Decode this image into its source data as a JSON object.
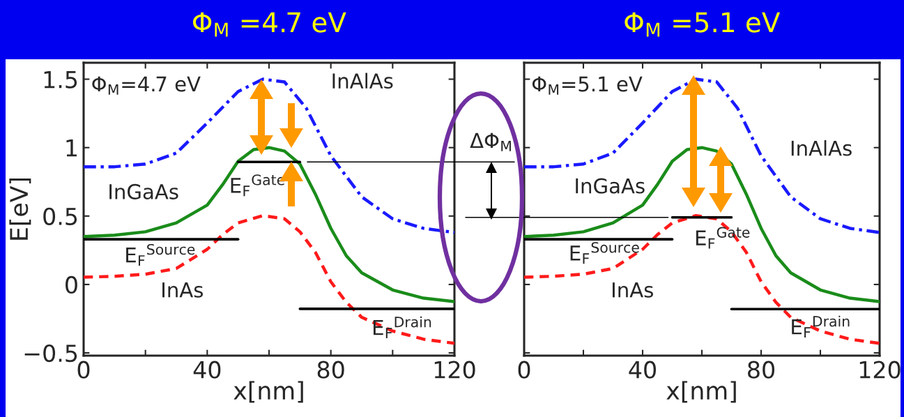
{
  "chart_data": [
    {
      "type": "line",
      "title": "Φ$_{M}$ =4.7 eV",
      "xlabel": "x[nm]",
      "ylabel": "E[eV]",
      "xlim": [
        0,
        120
      ],
      "ylim": [
        -0.52,
        1.62
      ],
      "xticks": [
        0,
        {
          "value": 20,
          "label": null
        },
        40,
        {
          "value": 60,
          "label": null
        },
        80,
        {
          "value": 100,
          "label": null
        },
        120
      ],
      "yticks": [
        {
          "value": -0.5,
          "label": "−0.5"
        },
        0,
        0.5,
        1,
        1.5
      ],
      "grid": false,
      "legend": false,
      "series": [
        {
          "name": "InAlAs",
          "color": "#1a1aff",
          "line_style": "dashdot",
          "x": [
            0,
            10,
            20,
            30,
            40,
            50,
            58,
            65,
            72,
            80,
            90,
            100,
            110,
            120
          ],
          "values": [
            0.86,
            0.86,
            0.88,
            0.96,
            1.18,
            1.41,
            1.5,
            1.48,
            1.29,
            0.94,
            0.64,
            0.48,
            0.41,
            0.38
          ]
        },
        {
          "name": "InGaAs",
          "color": "#1a8c1a",
          "line_style": "solid",
          "x": [
            0,
            10,
            20,
            30,
            40,
            45,
            50,
            55,
            60,
            65,
            70,
            75,
            80,
            85,
            90,
            100,
            110,
            120
          ],
          "values": [
            0.35,
            0.36,
            0.385,
            0.45,
            0.58,
            0.73,
            0.9,
            0.986,
            1.0,
            0.975,
            0.88,
            0.66,
            0.41,
            0.21,
            0.085,
            -0.04,
            -0.1,
            -0.125
          ]
        },
        {
          "name": "InAs",
          "color": "#ff1a1a",
          "line_style": "dashed",
          "x": [
            0,
            10,
            20,
            30,
            40,
            45,
            50,
            58,
            65,
            70,
            75,
            80,
            85,
            90,
            100,
            110,
            120
          ],
          "values": [
            0.053,
            0.06,
            0.075,
            0.117,
            0.257,
            0.364,
            0.45,
            0.503,
            0.48,
            0.385,
            0.235,
            0.02,
            -0.13,
            -0.24,
            -0.34,
            -0.4,
            -0.43
          ]
        },
        {
          "name": "E$_{F}$$^{Source}$",
          "color": "#000000",
          "line_style": "solid",
          "x": [
            0,
            50
          ],
          "values": [
            0.33,
            0.33
          ]
        },
        {
          "name": "E$_{F}$$^{Gate}$",
          "color": "#000000",
          "line_style": "solid",
          "x": [
            50,
            70
          ],
          "values": [
            0.895,
            0.895
          ]
        },
        {
          "name": "E$_{F}$$^{Drain}$",
          "color": "#000000",
          "line_style": "solid",
          "x": [
            70,
            120
          ],
          "values": [
            -0.178,
            -0.178
          ]
        },
        {
          "color": "#000000",
          "line_style": "solid",
          "x": [
            72.4,
            120
          ],
          "values": [
            0.895,
            0.895
          ]
        }
      ],
      "annotations": [
        "Φ$_{M}$=4.7 eV",
        "ΔΦ$_{M}$"
      ]
    },
    {
      "type": "line",
      "title": "Φ$_{M}$ =5.1 eV",
      "xlabel": "x[nm]",
      "xlim": [
        0,
        120
      ],
      "ylim": [
        -0.52,
        1.62
      ],
      "xticks": [
        0,
        {
          "value": 20,
          "label": null
        },
        40,
        {
          "value": 60,
          "label": null
        },
        80,
        {
          "value": 100,
          "label": null
        },
        120
      ],
      "yticks": [
        {
          "value": -0.5,
          "label": null
        },
        {
          "value": 0,
          "label": null
        },
        {
          "value": 0.5,
          "label": null
        },
        {
          "value": 1,
          "label": null
        },
        {
          "value": 1.5,
          "label": null
        }
      ],
      "tick_labels": "x",
      "grid": false,
      "legend": false,
      "series": [
        {
          "name": "InAlAs",
          "color": "#1a1aff",
          "line_style": "dashdot",
          "x": [
            0,
            10,
            20,
            30,
            40,
            50,
            58,
            65,
            72,
            80,
            90,
            100,
            110,
            120
          ],
          "values": [
            0.86,
            0.86,
            0.88,
            0.96,
            1.18,
            1.41,
            1.5,
            1.48,
            1.29,
            0.94,
            0.64,
            0.48,
            0.41,
            0.38
          ]
        },
        {
          "name": "InGaAs",
          "color": "#1a8c1a",
          "line_style": "solid",
          "x": [
            0,
            10,
            20,
            30,
            40,
            45,
            50,
            55,
            60,
            65,
            70,
            75,
            80,
            85,
            90,
            100,
            110,
            120
          ],
          "values": [
            0.35,
            0.36,
            0.385,
            0.45,
            0.58,
            0.73,
            0.9,
            0.986,
            1.0,
            0.975,
            0.88,
            0.66,
            0.41,
            0.21,
            0.085,
            -0.04,
            -0.1,
            -0.125
          ]
        },
        {
          "name": "InAs",
          "color": "#ff1a1a",
          "line_style": "dashed",
          "x": [
            0,
            10,
            20,
            30,
            40,
            45,
            50,
            58,
            65,
            70,
            75,
            80,
            85,
            90,
            100,
            110,
            120
          ],
          "values": [
            0.053,
            0.06,
            0.075,
            0.117,
            0.257,
            0.364,
            0.45,
            0.503,
            0.48,
            0.385,
            0.235,
            0.02,
            -0.13,
            -0.24,
            -0.34,
            -0.4,
            -0.43
          ]
        },
        {
          "name": "E$_{F}$$^{Source}$",
          "color": "#000000",
          "line_style": "solid",
          "x": [
            0,
            50
          ],
          "values": [
            0.33,
            0.33
          ]
        },
        {
          "name": "E$_{F}$$^{Gate}$",
          "color": "#000000",
          "line_style": "solid",
          "x": [
            50,
            70
          ],
          "values": [
            0.49,
            0.49
          ]
        },
        {
          "name": "E$_{F}$$^{Drain}$",
          "color": "#000000",
          "line_style": "solid",
          "x": [
            70,
            120
          ],
          "values": [
            -0.18,
            -0.18
          ]
        },
        {
          "color": "#000000",
          "line_style": "solid",
          "x": [
            0,
            48.6
          ],
          "values": [
            0.49,
            0.49
          ]
        }
      ],
      "annotations": [
        "Φ$_{M}$=5.1 eV"
      ]
    }
  ]
}
